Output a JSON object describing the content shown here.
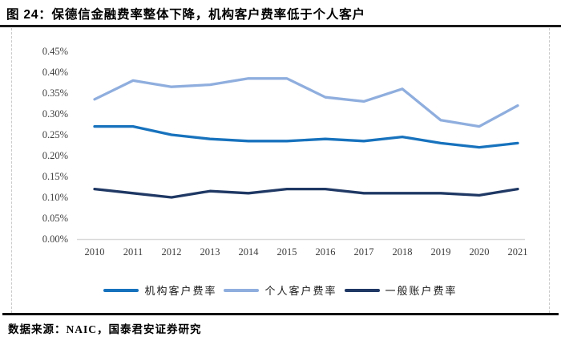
{
  "title": "图 24：保德信金融费率整体下降，机构客户费率低于个人客户",
  "source": "数据来源：NAIC，国泰君安证券研究",
  "chart_data": {
    "type": "line",
    "title": "保德信金融费率整体下降，机构客户费率低于个人客户",
    "xlabel": "",
    "ylabel": "",
    "unit": "%",
    "x": [
      "2010",
      "2011",
      "2012",
      "2013",
      "2014",
      "2015",
      "2016",
      "2017",
      "2018",
      "2019",
      "2020",
      "2021"
    ],
    "series": [
      {
        "name": "机构客户费率",
        "color": "#1772BD",
        "values": [
          0.27,
          0.27,
          0.25,
          0.24,
          0.235,
          0.235,
          0.24,
          0.235,
          0.245,
          0.23,
          0.22,
          0.23
        ]
      },
      {
        "name": "个人客户费率",
        "color": "#8FAEDE",
        "values": [
          0.335,
          0.38,
          0.365,
          0.37,
          0.385,
          0.385,
          0.34,
          0.33,
          0.36,
          0.285,
          0.27,
          0.32
        ]
      },
      {
        "name": "一般账户费率",
        "color": "#1F3864",
        "values": [
          0.12,
          0.11,
          0.1,
          0.115,
          0.11,
          0.12,
          0.12,
          0.11,
          0.11,
          0.11,
          0.105,
          0.12
        ]
      }
    ],
    "ylim": [
      0.0,
      0.45
    ],
    "y_ticks": [
      {
        "label": "0.45%",
        "value": 0.45
      },
      {
        "label": "0.40%",
        "value": 0.4
      },
      {
        "label": "0.35%",
        "value": 0.35
      },
      {
        "label": "0.30%",
        "value": 0.3
      },
      {
        "label": "0.25%",
        "value": 0.25
      },
      {
        "label": "0.20%",
        "value": 0.2
      },
      {
        "label": "0.15%",
        "value": 0.15
      },
      {
        "label": "0.10%",
        "value": 0.1
      },
      {
        "label": "0.05%",
        "value": 0.05
      },
      {
        "label": "0.00%",
        "value": 0.0
      }
    ],
    "grid": false,
    "legend_position": "bottom"
  }
}
